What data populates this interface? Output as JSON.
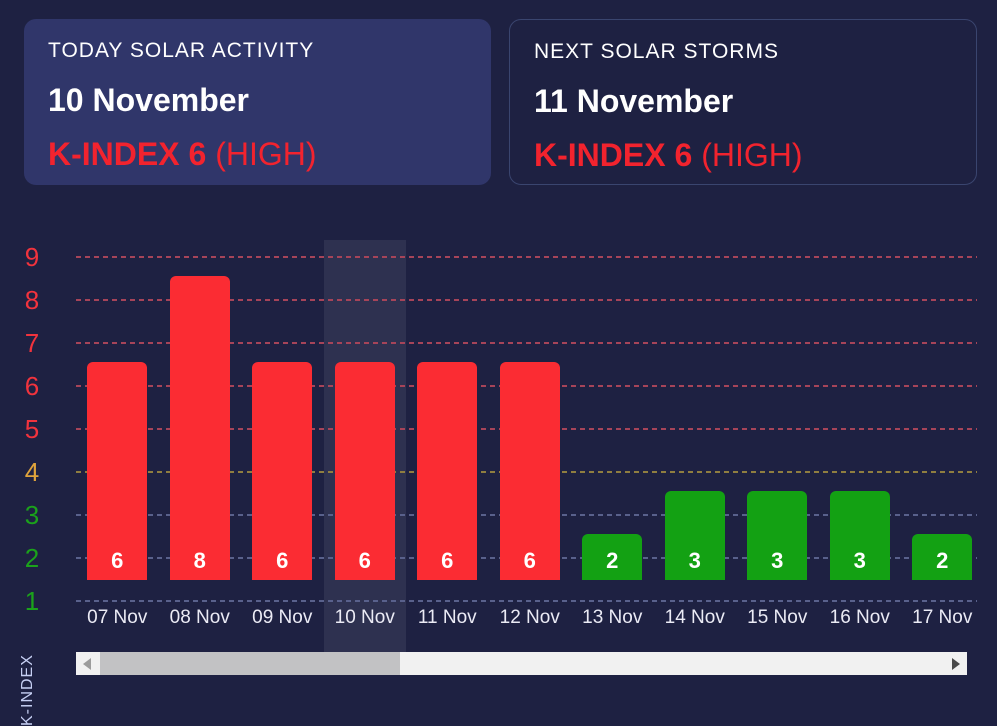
{
  "cards": {
    "today": {
      "title": "TODAY SOLAR ACTIVITY",
      "date": "10 November",
      "kindex": "K-INDEX 6",
      "level": "(HIGH)"
    },
    "next": {
      "title": "NEXT SOLAR STORMS",
      "date": "11 November",
      "kindex": "K-INDEX 6",
      "level": "(HIGH)"
    }
  },
  "chart_data": {
    "type": "bar",
    "title": "",
    "xlabel": "",
    "ylabel": "K-INDEX",
    "categories": [
      "07 Nov",
      "08 Nov",
      "09 Nov",
      "10 Nov",
      "11 Nov",
      "12 Nov",
      "13 Nov",
      "14 Nov",
      "15 Nov",
      "16 Nov",
      "17 Nov"
    ],
    "values": [
      6,
      8,
      6,
      6,
      6,
      6,
      2,
      3,
      3,
      3,
      2
    ],
    "bar_colors": [
      "#fb2c33",
      "#fb2c33",
      "#fb2c33",
      "#fb2c33",
      "#fb2c33",
      "#fb2c33",
      "#13a113",
      "#13a113",
      "#13a113",
      "#13a113",
      "#13a113"
    ],
    "highlighted_category": "10 Nov",
    "y_ticks": [
      9,
      8,
      7,
      6,
      5,
      4,
      3,
      2,
      1
    ],
    "ylim": [
      0,
      9
    ],
    "grid": "horizontal-dashed",
    "legend": "none"
  },
  "colors": {
    "page_bg": "#1e2142",
    "card_bg": "#30366a",
    "card_border": "#3a456f",
    "accent_red_text": "#f2232e",
    "bar_red": "#fb2c33",
    "bar_green": "#13a113",
    "tick_high": "#f1333d",
    "tick_mid": "#dfa33c",
    "tick_low": "#1ba21b",
    "highlight_column": "rgba(255,255,255,0.075)"
  }
}
